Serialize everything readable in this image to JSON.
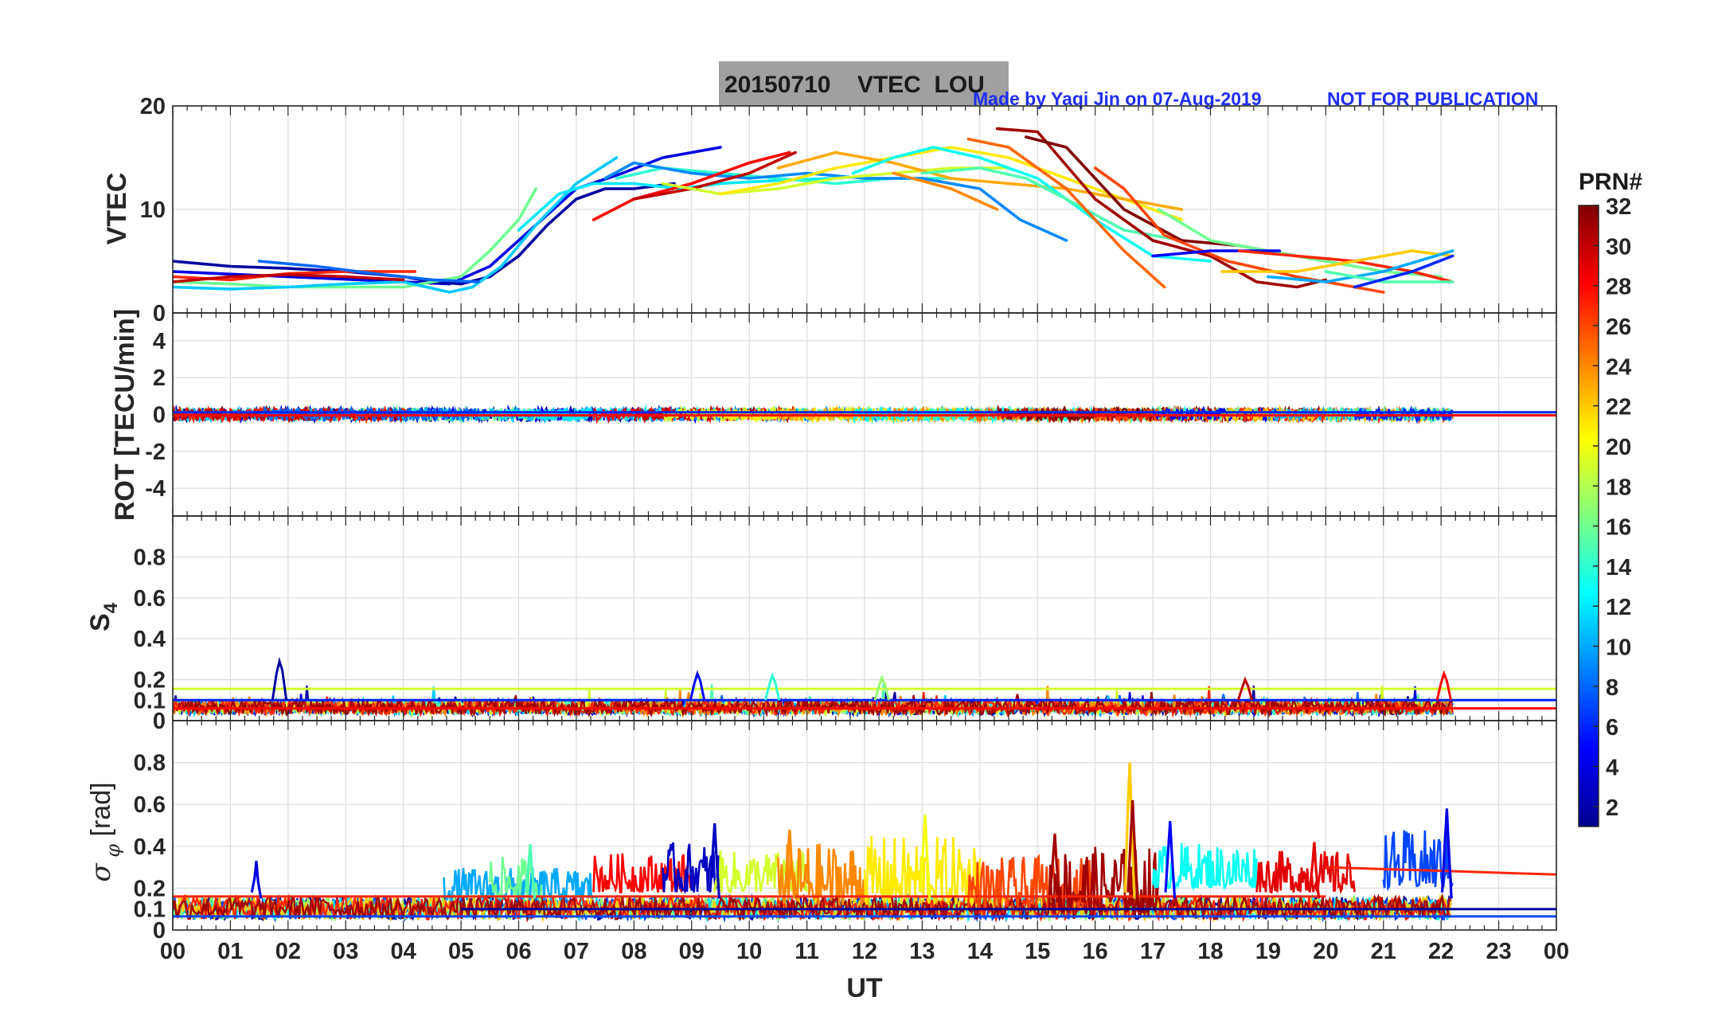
{
  "header": {
    "title": "20150710    VTEC  LOU",
    "credit": "Made by Yaqi Jin on 07-Aug-2019",
    "notice": "NOT FOR PUBLICATION"
  },
  "colorbar": {
    "title": "PRN#",
    "ticks": [
      "2",
      "4",
      "6",
      "8",
      "10",
      "12",
      "14",
      "16",
      "18",
      "20",
      "22",
      "24",
      "26",
      "28",
      "30",
      "32"
    ],
    "range": [
      1,
      32
    ],
    "colormap": "jet"
  },
  "chart_data": [
    {
      "type": "line",
      "id": "vtec",
      "ylabel": "VTEC",
      "xlabel": "",
      "xlim": [
        0,
        24
      ],
      "ylim": [
        0,
        20
      ],
      "yticks": [
        "0",
        "10",
        "20"
      ],
      "ytick_values": [
        0,
        10,
        20
      ],
      "series": [
        {
          "prn": 4,
          "x": [
            0,
            2,
            4,
            4.8,
            5.5,
            6.2,
            7,
            7.8,
            8.5,
            9.5
          ],
          "y": [
            4,
            3.5,
            3,
            2.8,
            4.5,
            8,
            12,
            13.5,
            15,
            16
          ]
        },
        {
          "prn": 2,
          "x": [
            0,
            1,
            2,
            3,
            4,
            4.5,
            5,
            5.5,
            6,
            6.5,
            7,
            7.5,
            8,
            8.7
          ],
          "y": [
            5,
            4.5,
            4.3,
            4,
            3.5,
            3,
            2.8,
            3.5,
            5.5,
            8.5,
            11,
            12,
            12,
            12.5
          ]
        },
        {
          "prn": 16,
          "x": [
            0,
            1,
            2,
            3,
            4,
            5,
            5.5,
            6,
            6.3
          ],
          "y": [
            3,
            2.8,
            2.5,
            2.5,
            2.5,
            3.5,
            6,
            9,
            12
          ]
        },
        {
          "prn": 11,
          "x": [
            0,
            1,
            2,
            3,
            4,
            4.8,
            5.2,
            5.7,
            6.3,
            7,
            7.7
          ],
          "y": [
            2.5,
            2.3,
            2.5,
            2.8,
            3,
            2,
            2.5,
            4.5,
            8.5,
            12.5,
            15
          ]
        },
        {
          "prn": 27,
          "x": [
            0,
            1,
            2,
            3,
            4.2
          ],
          "y": [
            3.5,
            3.2,
            3.8,
            4,
            4
          ]
        },
        {
          "prn": 30,
          "x": [
            0,
            1,
            2,
            3,
            4
          ],
          "y": [
            3,
            3.5,
            3.7,
            3.5,
            3.2
          ]
        },
        {
          "prn": 8,
          "x": [
            1.5,
            2.5,
            3.5,
            4.5,
            5.3
          ],
          "y": [
            5,
            4.5,
            3.8,
            3.2,
            3
          ]
        },
        {
          "prn": 12,
          "x": [
            6,
            6.7,
            7.3,
            8,
            8.8,
            9.5,
            10.5,
            11.5
          ],
          "y": [
            8,
            11.5,
            12.5,
            12.5,
            12,
            12.5,
            12.8,
            13
          ]
        },
        {
          "prn": 14,
          "x": [
            7.7,
            8.5,
            9.5,
            10.5,
            11.5,
            12.5,
            13.5
          ],
          "y": [
            13,
            14,
            13.5,
            13,
            12.5,
            13,
            13
          ]
        },
        {
          "prn": 9,
          "x": [
            7.5,
            8,
            9,
            10,
            11,
            12,
            13,
            14,
            14.7,
            15.5
          ],
          "y": [
            13,
            14.5,
            13.5,
            13,
            13.5,
            13,
            13,
            12,
            9,
            7
          ]
        },
        {
          "prn": 28,
          "x": [
            7.3,
            8,
            9,
            10,
            10.7
          ],
          "y": [
            9,
            11,
            12.5,
            14.5,
            15.5
          ]
        },
        {
          "prn": 30,
          "x": [
            8,
            9,
            10,
            10.8
          ],
          "y": [
            11,
            12,
            13.5,
            15.5
          ]
        },
        {
          "prn": 19,
          "x": [
            8.5,
            9.5,
            10.5,
            11.5,
            12.5,
            13.5,
            14.5
          ],
          "y": [
            12.5,
            11.5,
            12,
            13,
            13.5,
            14,
            14
          ]
        },
        {
          "prn": 21,
          "x": [
            9.5,
            10.5,
            11.5,
            12.5,
            13.5,
            14.5,
            15.5,
            16.5,
            17.5
          ],
          "y": [
            11.5,
            12.5,
            14,
            15,
            16,
            15,
            13,
            11,
            9
          ]
        },
        {
          "prn": 23,
          "x": [
            10.5,
            11.5,
            12.5,
            13.5,
            14.5,
            15.5,
            16.5,
            17.5
          ],
          "y": [
            14,
            15.5,
            14.5,
            13,
            12.5,
            12,
            11,
            10
          ]
        },
        {
          "prn": 24,
          "x": [
            12.5,
            13.5,
            14.3
          ],
          "y": [
            13.5,
            12,
            10
          ]
        },
        {
          "prn": 13,
          "x": [
            11.8,
            12.5,
            13.2,
            14,
            15,
            16,
            17,
            18
          ],
          "y": [
            13.5,
            15,
            16,
            15,
            13,
            9,
            5.5,
            5
          ]
        },
        {
          "prn": 15,
          "x": [
            13,
            14,
            14.8,
            15.5,
            16.5,
            17.5
          ],
          "y": [
            13.5,
            14,
            13,
            11,
            8,
            7
          ]
        },
        {
          "prn": 25,
          "x": [
            13.8,
            14.5,
            15.5,
            16.5,
            17.2
          ],
          "y": [
            16.8,
            16,
            12,
            6,
            2.5
          ]
        },
        {
          "prn": 31,
          "x": [
            14.3,
            15,
            16,
            17,
            18,
            18.8,
            19.5,
            20
          ],
          "y": [
            17.8,
            17.5,
            11,
            7,
            5.5,
            3,
            2.5,
            3.2
          ]
        },
        {
          "prn": 32,
          "x": [
            14.8,
            15.5,
            16.5,
            17.5,
            18.5,
            19.5,
            20
          ],
          "y": [
            17,
            16,
            10,
            7,
            6.5,
            5.5,
            5
          ]
        },
        {
          "prn": 26,
          "x": [
            16,
            16.5,
            17.2,
            18.3,
            19.5,
            21
          ],
          "y": [
            14,
            12,
            7.5,
            5,
            3.5,
            2
          ]
        },
        {
          "prn": 16,
          "x": [
            17.1,
            18,
            19,
            20,
            21,
            22
          ],
          "y": [
            10,
            7,
            6,
            5,
            4,
            3.5
          ]
        },
        {
          "prn": 5,
          "x": [
            17,
            18,
            19.2
          ],
          "y": [
            5.5,
            6,
            6
          ]
        },
        {
          "prn": 27,
          "x": [
            18.5,
            19.5,
            20.5,
            21.5,
            22.2
          ],
          "y": [
            6,
            5.5,
            5,
            4,
            3
          ]
        },
        {
          "prn": 22,
          "x": [
            18.2,
            19.5,
            20.5,
            21.5,
            22.2
          ],
          "y": [
            4,
            4,
            5,
            6,
            5.5
          ]
        },
        {
          "prn": 10,
          "x": [
            19,
            20,
            21,
            22.2
          ],
          "y": [
            3.5,
            3,
            4,
            6
          ]
        },
        {
          "prn": 15,
          "x": [
            20,
            21,
            21.7,
            22.2
          ],
          "y": [
            4,
            3,
            3,
            3
          ]
        },
        {
          "prn": 6,
          "x": [
            20.5,
            21.5,
            22.2
          ],
          "y": [
            2.5,
            4,
            5.5
          ]
        }
      ]
    },
    {
      "type": "line",
      "id": "rot",
      "ylabel": "ROT [TECU/min]",
      "xlabel": "",
      "xlim": [
        0,
        24
      ],
      "ylim": [
        -5.5,
        5.5
      ],
      "yticks": [
        "-4",
        "-2",
        "0",
        "2",
        "4"
      ],
      "ytick_values": [
        -4,
        -2,
        0,
        2,
        4
      ],
      "description_series": "per-PRN rate of TEC, fluctuating within about ±0.5 TECU/min around zero",
      "amplitude": 0.5
    },
    {
      "type": "line",
      "id": "s4",
      "ylabel": "S4",
      "xlabel": "",
      "xlim": [
        0,
        24
      ],
      "ylim": [
        0,
        1
      ],
      "yticks": [
        "0",
        "0.1",
        "0.2",
        "0.4",
        "0.6",
        "0.8"
      ],
      "ytick_values": [
        0,
        0.1,
        0.2,
        0.4,
        0.6,
        0.8
      ],
      "background_range": [
        0.03,
        0.12
      ],
      "peaks": [
        {
          "x": 1.85,
          "y": 0.29,
          "prn": 2
        },
        {
          "x": 9.1,
          "y": 0.23,
          "prn": 5
        },
        {
          "x": 10.4,
          "y": 0.22,
          "prn": 14
        },
        {
          "x": 12.3,
          "y": 0.21,
          "prn": 17
        },
        {
          "x": 18.6,
          "y": 0.2,
          "prn": 30
        },
        {
          "x": 22.05,
          "y": 0.23,
          "prn": 28
        }
      ],
      "levels": [
        {
          "y": 0.155,
          "prn": 19,
          "from": 0,
          "to": 24
        },
        {
          "y": 0.1,
          "prn": 6,
          "from": 0,
          "to": 24
        },
        {
          "y": 0.06,
          "prn": 28,
          "from": 0,
          "to": 24
        }
      ]
    },
    {
      "type": "line",
      "id": "sigma_phi",
      "ylabel": "σ_φ [rad]",
      "xlabel": "UT",
      "xlim": [
        0,
        24
      ],
      "ylim": [
        0,
        1
      ],
      "yticks": [
        "0",
        "0.1",
        "0.2",
        "0.4",
        "0.6",
        "0.8"
      ],
      "ytick_values": [
        0,
        0.1,
        0.2,
        0.4,
        0.6,
        0.8
      ],
      "xticks": [
        "00",
        "01",
        "02",
        "03",
        "04",
        "05",
        "06",
        "07",
        "08",
        "09",
        "10",
        "11",
        "12",
        "13",
        "14",
        "15",
        "16",
        "17",
        "18",
        "19",
        "20",
        "21",
        "22",
        "23",
        "00"
      ],
      "peaks": [
        {
          "x": 16.6,
          "y": 0.8,
          "prn": 22
        },
        {
          "x": 16.65,
          "y": 0.62,
          "prn": 31
        },
        {
          "x": 22.1,
          "y": 0.58,
          "prn": 4
        },
        {
          "x": 13.05,
          "y": 0.55,
          "prn": 20
        },
        {
          "x": 9.4,
          "y": 0.51,
          "prn": 3
        },
        {
          "x": 17.3,
          "y": 0.52,
          "prn": 5
        },
        {
          "x": 1.45,
          "y": 0.33,
          "prn": 4
        },
        {
          "x": 6.2,
          "y": 0.41,
          "prn": 15
        },
        {
          "x": 10.7,
          "y": 0.48,
          "prn": 24
        },
        {
          "x": 15.3,
          "y": 0.46,
          "prn": 31
        },
        {
          "x": 19.8,
          "y": 0.42,
          "prn": 29
        }
      ],
      "bands": [
        {
          "prn": 10,
          "from": 4.7,
          "to": 7.3,
          "low": 0.14,
          "high": 0.3
        },
        {
          "prn": 16,
          "from": 5.5,
          "to": 6.4,
          "low": 0.15,
          "high": 0.35
        },
        {
          "prn": 28,
          "from": 7.3,
          "to": 9,
          "low": 0.18,
          "high": 0.37
        },
        {
          "prn": 3,
          "from": 8.5,
          "to": 9.5,
          "low": 0.18,
          "high": 0.42
        },
        {
          "prn": 19,
          "from": 9.4,
          "to": 11,
          "low": 0.18,
          "high": 0.38
        },
        {
          "prn": 24,
          "from": 10.5,
          "to": 12,
          "low": 0.12,
          "high": 0.42
        },
        {
          "prn": 21,
          "from": 12,
          "to": 14,
          "low": 0.12,
          "high": 0.45
        },
        {
          "prn": 26,
          "from": 13.8,
          "to": 16,
          "low": 0.1,
          "high": 0.35
        },
        {
          "prn": 31,
          "from": 15.2,
          "to": 17.1,
          "low": 0.08,
          "high": 0.4
        },
        {
          "prn": 13,
          "from": 17,
          "to": 18.8,
          "low": 0.2,
          "high": 0.42
        },
        {
          "prn": 29,
          "from": 18.8,
          "to": 20.5,
          "low": 0.18,
          "high": 0.38
        },
        {
          "prn": 7,
          "from": 21,
          "to": 22.2,
          "low": 0.2,
          "high": 0.48
        }
      ],
      "levels": [
        {
          "y": 0.065,
          "prn": 7,
          "from": 0,
          "to": 24
        },
        {
          "y": 0.1,
          "prn": 2,
          "from": 5,
          "to": 24
        },
        {
          "y": 0.16,
          "prn": 27,
          "from": 0,
          "to": 20
        }
      ],
      "trend": {
        "prn": 27,
        "x": [
          20,
          24
        ],
        "y": [
          0.3,
          0.265
        ]
      }
    }
  ]
}
